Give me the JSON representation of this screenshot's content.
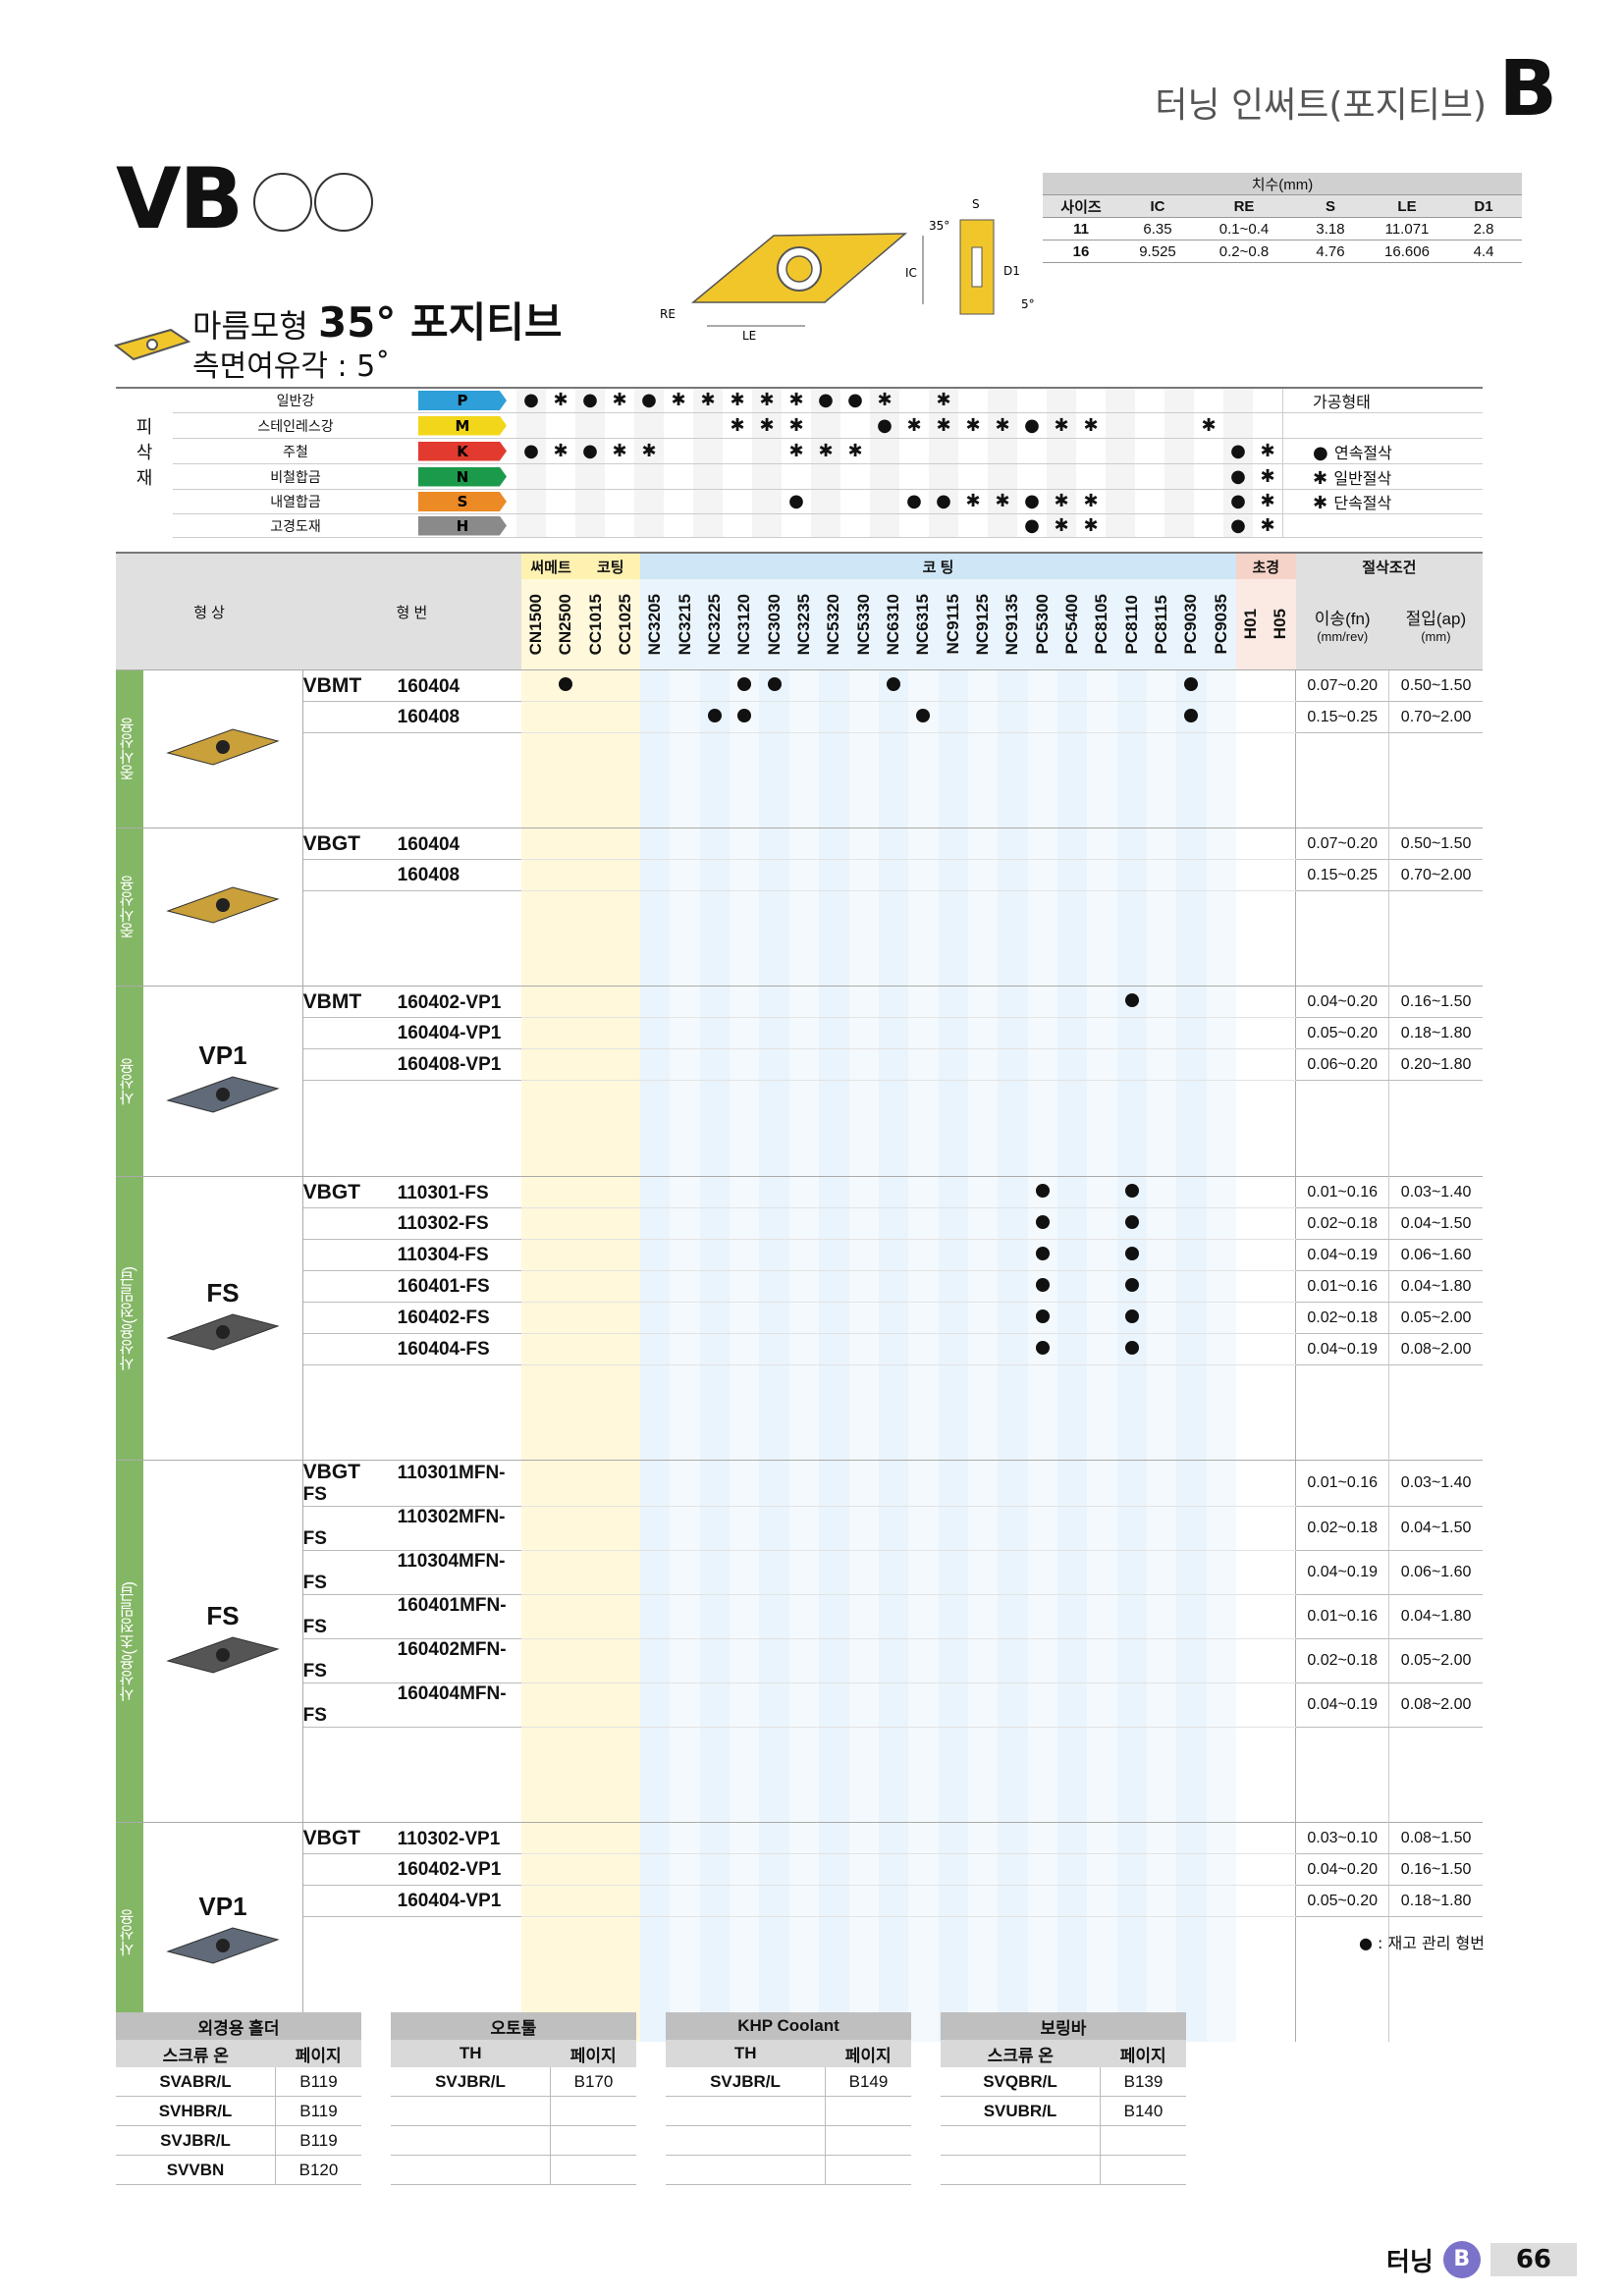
{
  "header": {
    "title": "터닝 인써트(포지티브)",
    "section": "B"
  },
  "product": {
    "name": "VB",
    "shape_label": "마름모형",
    "angle": "35° 포지티브",
    "clearance": "측면여유각 : 5˚"
  },
  "dims": {
    "caption": "치수(mm)",
    "headers": [
      "사이즈",
      "IC",
      "RE",
      "S",
      "LE",
      "D1"
    ],
    "rows": [
      [
        "11",
        "6.35",
        "0.1~0.4",
        "3.18",
        "11.071",
        "2.8"
      ],
      [
        "16",
        "9.525",
        "0.2~0.8",
        "4.76",
        "16.606",
        "4.4"
      ]
    ]
  },
  "diagram": {
    "labels": [
      "35°",
      "S",
      "IC",
      "D1",
      "5°",
      "RE",
      "LE"
    ]
  },
  "materials": {
    "group_label": [
      "피",
      "삭",
      "재"
    ],
    "rows": [
      {
        "name": "일반강",
        "code": "P",
        "color": "#2e9fd8"
      },
      {
        "name": "스테인레스강",
        "code": "M",
        "color": "#f2d61a"
      },
      {
        "name": "주철",
        "code": "K",
        "color": "#e23a2e"
      },
      {
        "name": "비철합금",
        "code": "N",
        "color": "#1c9a4b"
      },
      {
        "name": "내열합금",
        "code": "S",
        "color": "#ec8a25"
      },
      {
        "name": "고경도재",
        "code": "H",
        "color": "#8a8a8a"
      }
    ],
    "legend_title": "가공형태",
    "legend": [
      "연속절삭",
      "일반절삭",
      "단속절삭"
    ]
  },
  "main": {
    "col_shape": "형 상",
    "col_type": "형 번",
    "group_cermet": "써메트",
    "group_coating1": "코팅",
    "group_coating2": "코 팅",
    "group_ultra": "초경",
    "group_cond": "절삭조건",
    "feed_label": "이송(fn)",
    "feed_unit": "(mm/rev)",
    "depth_label": "절입(ap)",
    "depth_unit": "(mm)",
    "grades": [
      "CN1500",
      "CN2500",
      "CC1015",
      "CC1025",
      "NC3205",
      "NC3215",
      "NC3225",
      "NC3120",
      "NC3030",
      "NC3235",
      "NC5320",
      "NC5330",
      "NC6310",
      "NC6315",
      "NC9115",
      "NC9125",
      "NC9135",
      "PC5300",
      "PC5400",
      "PC8105",
      "PC8110",
      "PC8115",
      "PC9030",
      "PC9035",
      "H01",
      "H05"
    ],
    "sections": [
      {
        "side": "중사상용",
        "chip": "",
        "type": "VBMT",
        "rows": [
          {
            "code": "160404",
            "dots": [
              1,
              7,
              8,
              12,
              22
            ],
            "feed": "0.07~0.20",
            "depth": "0.50~1.50"
          },
          {
            "code": "160408",
            "dots": [
              6,
              7,
              13,
              22
            ],
            "feed": "0.15~0.25",
            "depth": "0.70~2.00"
          }
        ]
      },
      {
        "side": "중사상용",
        "chip": "",
        "type": "VBGT",
        "rows": [
          {
            "code": "160404",
            "dots": [],
            "feed": "0.07~0.20",
            "depth": "0.50~1.50"
          },
          {
            "code": "160408",
            "dots": [],
            "feed": "0.15~0.25",
            "depth": "0.70~2.00"
          }
        ]
      },
      {
        "side": "사상용",
        "chip": "VP1",
        "type": "VBMT",
        "rows": [
          {
            "code": "160402-VP1",
            "dots": [
              20
            ],
            "feed": "0.04~0.20",
            "depth": "0.16~1.50"
          },
          {
            "code": "160404-VP1",
            "dots": [],
            "feed": "0.05~0.20",
            "depth": "0.18~1.80"
          },
          {
            "code": "160408-VP1",
            "dots": [],
            "feed": "0.06~0.20",
            "depth": "0.20~1.80"
          }
        ]
      },
      {
        "side": "사상용(정밀급)",
        "chip": "FS",
        "type": "VBGT",
        "rows": [
          {
            "code": "110301-FS",
            "dots": [
              17,
              20
            ],
            "feed": "0.01~0.16",
            "depth": "0.03~1.40"
          },
          {
            "code": "110302-FS",
            "dots": [
              17,
              20
            ],
            "feed": "0.02~0.18",
            "depth": "0.04~1.50"
          },
          {
            "code": "110304-FS",
            "dots": [
              17,
              20
            ],
            "feed": "0.04~0.19",
            "depth": "0.06~1.60"
          },
          {
            "code": "160401-FS",
            "dots": [
              17,
              20
            ],
            "feed": "0.01~0.16",
            "depth": "0.04~1.80"
          },
          {
            "code": "160402-FS",
            "dots": [
              17,
              20
            ],
            "feed": "0.02~0.18",
            "depth": "0.05~2.00"
          },
          {
            "code": "160404-FS",
            "dots": [
              17,
              20
            ],
            "feed": "0.04~0.19",
            "depth": "0.08~2.00"
          }
        ]
      },
      {
        "side": "사상용(초정밀급)",
        "chip": "FS",
        "type": "VBGT",
        "rows": [
          {
            "code": "110301MFN-FS",
            "dots": [],
            "feed": "0.01~0.16",
            "depth": "0.03~1.40"
          },
          {
            "code": "110302MFN-FS",
            "dots": [],
            "feed": "0.02~0.18",
            "depth": "0.04~1.50"
          },
          {
            "code": "110304MFN-FS",
            "dots": [],
            "feed": "0.04~0.19",
            "depth": "0.06~1.60"
          },
          {
            "code": "160401MFN-FS",
            "dots": [],
            "feed": "0.01~0.16",
            "depth": "0.04~1.80"
          },
          {
            "code": "160402MFN-FS",
            "dots": [],
            "feed": "0.02~0.18",
            "depth": "0.05~2.00"
          },
          {
            "code": "160404MFN-FS",
            "dots": [],
            "feed": "0.04~0.19",
            "depth": "0.08~2.00"
          }
        ]
      },
      {
        "side": "사상용",
        "chip": "VP1",
        "type": "VBGT",
        "rows": [
          {
            "code": "110302-VP1",
            "dots": [],
            "feed": "0.03~0.10",
            "depth": "0.08~1.50"
          },
          {
            "code": "160402-VP1",
            "dots": [],
            "feed": "0.04~0.20",
            "depth": "0.16~1.50"
          },
          {
            "code": "160404-VP1",
            "dots": [],
            "feed": "0.05~0.20",
            "depth": "0.18~1.80"
          }
        ]
      }
    ],
    "note": "● : 재고 관리 형번"
  },
  "holders": [
    {
      "title": "외경용 홀더",
      "h1": "스크류 온",
      "h2": "페이지",
      "rows": [
        [
          "SVABR/L",
          "B119"
        ],
        [
          "SVHBR/L",
          "B119"
        ],
        [
          "SVJBR/L",
          "B119"
        ],
        [
          "SVVBN",
          "B120"
        ]
      ]
    },
    {
      "title": "오토툴",
      "h1": "TH",
      "h2": "페이지",
      "rows": [
        [
          "SVJBR/L",
          "B170"
        ],
        [
          "",
          ""
        ],
        [
          "",
          ""
        ],
        [
          "",
          ""
        ]
      ]
    },
    {
      "title": "KHP Coolant",
      "h1": "TH",
      "h2": "페이지",
      "rows": [
        [
          "SVJBR/L",
          "B149"
        ],
        [
          "",
          ""
        ],
        [
          "",
          ""
        ],
        [
          "",
          ""
        ]
      ]
    },
    {
      "title": "보링바",
      "h1": "스크류 온",
      "h2": "페이지",
      "rows": [
        [
          "SVQBR/L",
          "B139"
        ],
        [
          "SVUBR/L",
          "B140"
        ],
        [
          "",
          ""
        ],
        [
          "",
          ""
        ]
      ]
    }
  ],
  "footer": {
    "section_label": "터닝",
    "badge": "B",
    "page": "66"
  }
}
